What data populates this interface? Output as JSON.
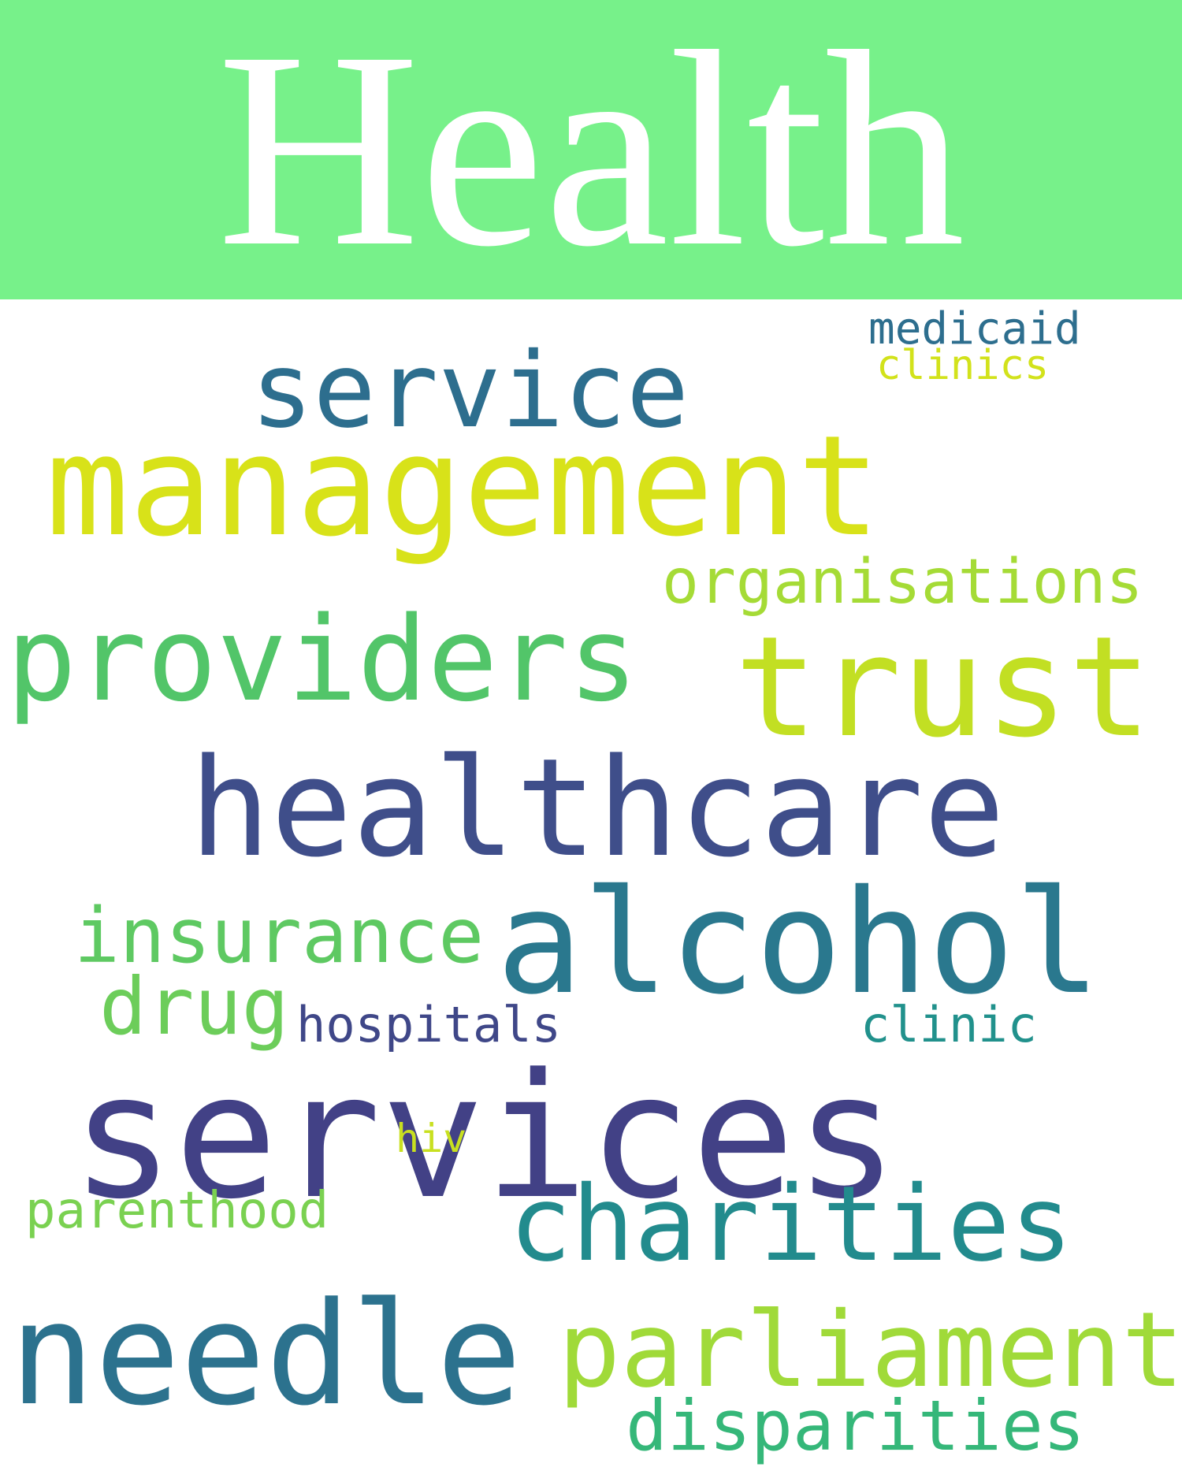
{
  "header": {
    "title": "Health",
    "background": "#77f18a"
  },
  "words": [
    {
      "text": "service",
      "color": "#2d6e8e"
    },
    {
      "text": "medicaid",
      "color": "#2d6e8e"
    },
    {
      "text": "clinics",
      "color": "#d2e21b"
    },
    {
      "text": "management",
      "color": "#d8e219"
    },
    {
      "text": "organisations",
      "color": "#a5db36"
    },
    {
      "text": "providers",
      "color": "#52c569"
    },
    {
      "text": "trust",
      "color": "#c2df23"
    },
    {
      "text": "healthcare",
      "color": "#3f4e8a"
    },
    {
      "text": "alcohol",
      "color": "#2a788e"
    },
    {
      "text": "insurance",
      "color": "#5ec962"
    },
    {
      "text": "drug",
      "color": "#6ccd5a"
    },
    {
      "text": "hospitals",
      "color": "#3f4788"
    },
    {
      "text": "clinic",
      "color": "#21918c"
    },
    {
      "text": "services",
      "color": "#424186"
    },
    {
      "text": "hiv",
      "color": "#c8e020"
    },
    {
      "text": "parenthood",
      "color": "#7ad151"
    },
    {
      "text": "charities",
      "color": "#228b8d"
    },
    {
      "text": "needle",
      "color": "#2c728e"
    },
    {
      "text": "parliament",
      "color": "#a0da39"
    },
    {
      "text": "disparities",
      "color": "#35b779"
    }
  ]
}
